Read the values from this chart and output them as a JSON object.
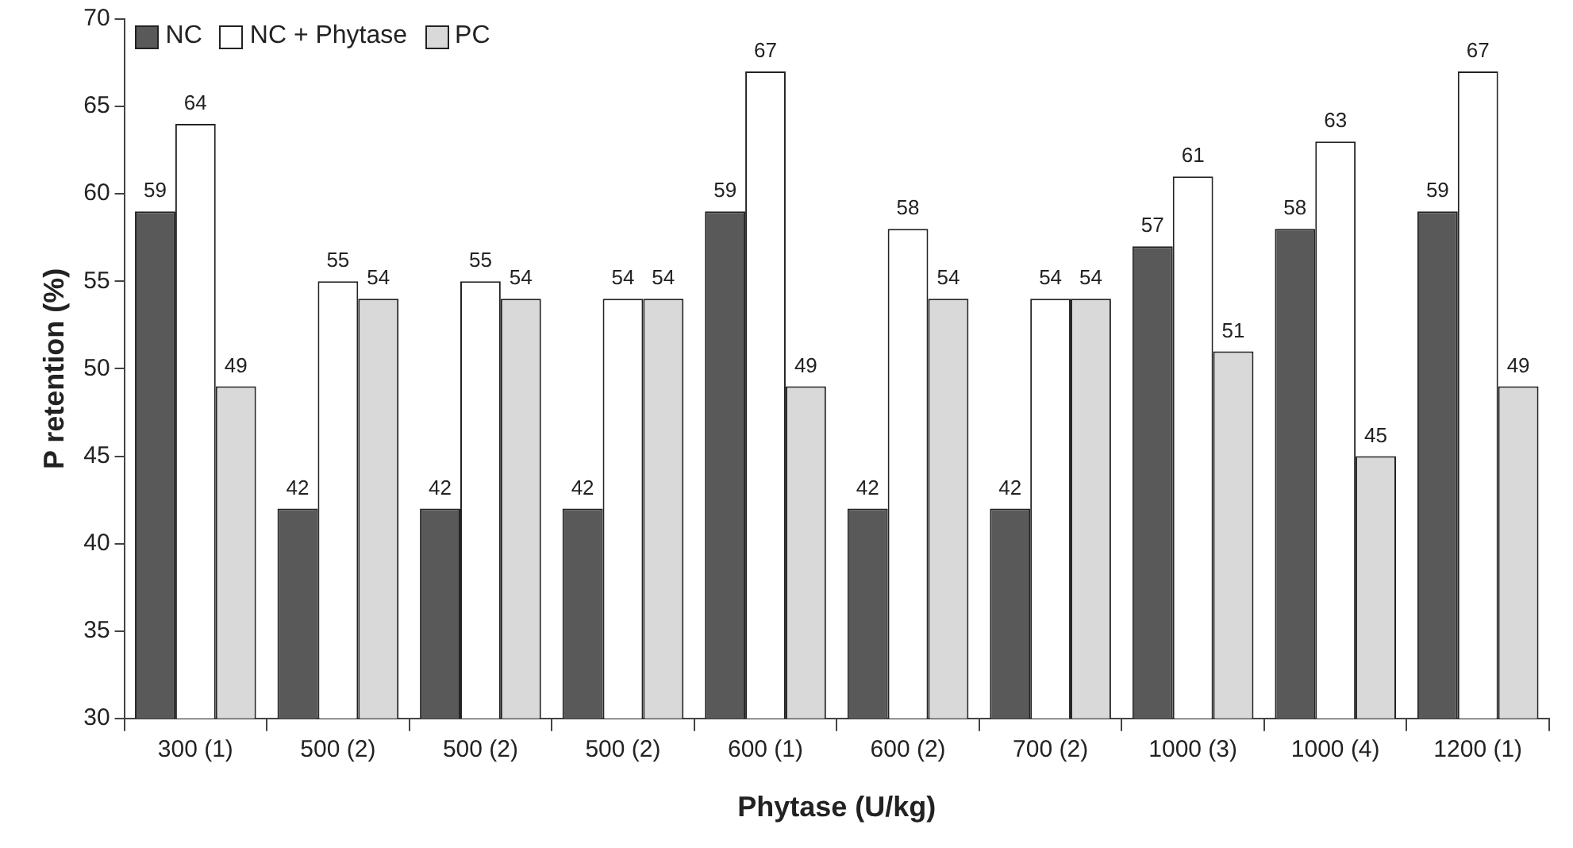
{
  "chart_data": {
    "type": "bar",
    "xlabel": "Phytase (U/kg)",
    "ylabel": "P retention (%)",
    "categories": [
      "300 (1)",
      "500 (2)",
      "500 (2)",
      "500 (2)",
      "600 (1)",
      "600 (2)",
      "700 (2)",
      "1000 (3)",
      "1000 (4)",
      "1200 (1)"
    ],
    "series": [
      {
        "name": "NC",
        "color": "#595959",
        "values": [
          59,
          42,
          42,
          42,
          59,
          42,
          42,
          57,
          58,
          59
        ]
      },
      {
        "name": "NC + Phytase",
        "color": "#ffffff",
        "values": [
          64,
          55,
          55,
          54,
          67,
          58,
          54,
          61,
          63,
          67
        ]
      },
      {
        "name": "PC",
        "color": "#d9d9d9",
        "values": [
          49,
          54,
          54,
          54,
          49,
          54,
          54,
          51,
          45,
          49
        ]
      }
    ],
    "ylim": [
      30,
      70
    ],
    "yticks": [
      30,
      35,
      40,
      45,
      50,
      55,
      60,
      65,
      70
    ],
    "grid": false,
    "legend": "top left",
    "data_labels": true
  }
}
